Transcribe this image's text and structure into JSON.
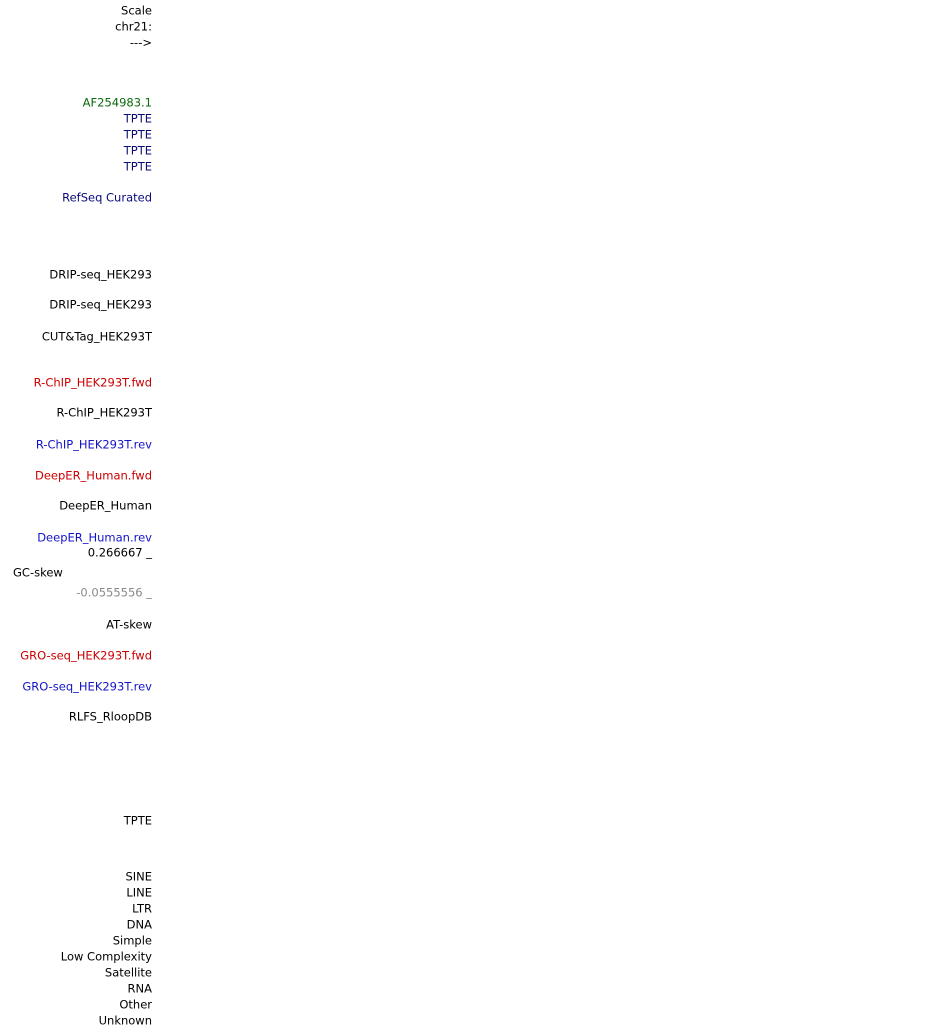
{
  "labels": [
    "Scale",
    "chr21:",
    "--->",
    "AF254983.1",
    "TPTE",
    "TPTE",
    "TPTE",
    "TPTE",
    "RefSeq Curated",
    "DRIP-seq_HEK293",
    "DRIP-seq_HEK293",
    "CUT&Tag_HEK293T",
    "R-ChIP_HEK293T.fwd",
    "R-ChIP_HEK293T",
    "R-ChIP_HEK293T.rev",
    "DeepER_Human.fwd",
    "DeepER_Human",
    "DeepER_Human.rev",
    "0.266667 _",
    "GC-skew",
    "-0.0555556 _",
    "AT-skew",
    "GRO-seq_HEK293T.fwd",
    "GRO-seq_HEK293T.rev",
    "RLFS_RloopDB",
    "TPTE",
    "SINE",
    "LINE",
    "LTR",
    "DNA",
    "Simple",
    "Low Complexity",
    "Satellite",
    "RNA",
    "Other",
    "Unknown"
  ]
}
